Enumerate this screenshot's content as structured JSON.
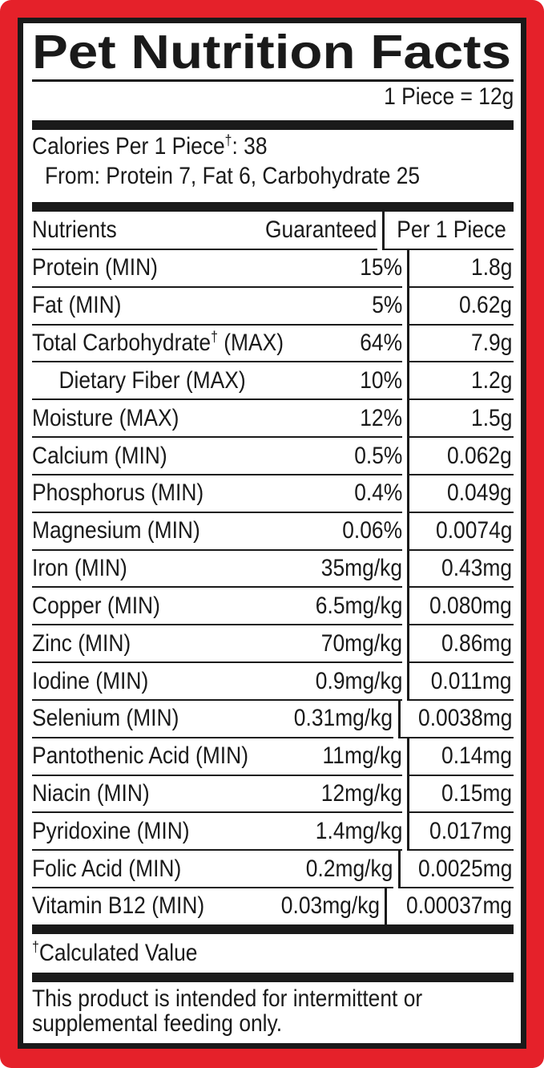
{
  "label": {
    "title": "Pet Nutrition Facts",
    "serving_line": "1 Piece = 12g",
    "calories": {
      "pre": "Calories Per 1 Piece",
      "dagger": "†",
      "post": ": 38",
      "from_line": "From: Protein 7, Fat 6, Carbohydrate 25"
    },
    "table": {
      "headers": {
        "nutrients": "Nutrients",
        "guaranteed": "Guaranteed",
        "per_piece": "Per 1 Piece"
      },
      "rows": [
        {
          "name": "Protein (MIN)",
          "guaranteed": "15%",
          "per_piece": "1.8g"
        },
        {
          "name": "Fat (MIN)",
          "guaranteed": "5%",
          "per_piece": "0.62g"
        },
        {
          "name": "Total Carbohydrate† (MAX)",
          "guaranteed": "64%",
          "per_piece": "7.9g"
        },
        {
          "name": "Dietary Fiber (MAX)",
          "guaranteed": "10%",
          "per_piece": "1.2g",
          "indent": true
        },
        {
          "name": "Moisture (MAX)",
          "guaranteed": "12%",
          "per_piece": "1.5g"
        },
        {
          "name": "Calcium (MIN)",
          "guaranteed": "0.5%",
          "per_piece": "0.062g"
        },
        {
          "name": "Phosphorus (MIN)",
          "guaranteed": "0.4%",
          "per_piece": "0.049g"
        },
        {
          "name": "Magnesium (MIN)",
          "guaranteed": "0.06%",
          "per_piece": "0.0074g"
        },
        {
          "name": "Iron (MIN)",
          "guaranteed": "35mg/kg",
          "per_piece": "0.43mg"
        },
        {
          "name": "Copper (MIN)",
          "guaranteed": "6.5mg/kg",
          "per_piece": "0.080mg"
        },
        {
          "name": "Zinc (MIN)",
          "guaranteed": "70mg/kg",
          "per_piece": "0.86mg"
        },
        {
          "name": "Iodine (MIN)",
          "guaranteed": "0.9mg/kg",
          "per_piece": "0.011mg"
        },
        {
          "name": "Selenium (MIN)",
          "guaranteed": "0.31mg/kg",
          "per_piece": "0.0038mg"
        },
        {
          "name": "Pantothenic Acid (MIN)",
          "guaranteed": "11mg/kg",
          "per_piece": "0.14mg"
        },
        {
          "name": "Niacin (MIN)",
          "guaranteed": "12mg/kg",
          "per_piece": "0.15mg"
        },
        {
          "name": "Pyridoxine (MIN)",
          "guaranteed": "1.4mg/kg",
          "per_piece": "0.017mg"
        },
        {
          "name": "Folic Acid (MIN)",
          "guaranteed": "0.2mg/kg",
          "per_piece": "0.0025mg"
        },
        {
          "name": "Vitamin B12 (MIN)",
          "guaranteed": "0.03mg/kg",
          "per_piece": "0.00037mg"
        }
      ]
    },
    "footnote": {
      "dagger": "†",
      "text": "Calculated Value"
    },
    "feeding_statement": {
      "line1": "This product is intended for intermittent or",
      "line2": "supplemental feeding only."
    },
    "colors": {
      "frame_red": "#e5212a",
      "ink_black": "#1a1a1a",
      "background": "#ffffff"
    }
  }
}
